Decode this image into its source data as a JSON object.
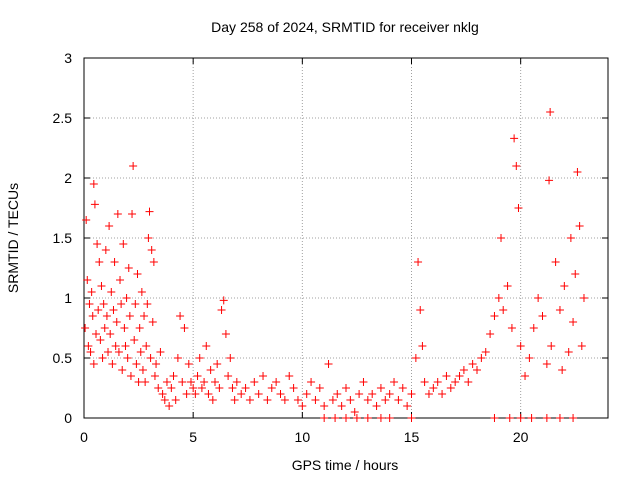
{
  "chart_data": {
    "type": "scatter",
    "title": "Day 258 of 2024, SRMTID for receiver nklg",
    "xlabel": "GPS time / hours",
    "ylabel": "SRMTID / TECUs",
    "xlim": [
      0,
      24
    ],
    "ylim": [
      0,
      3
    ],
    "x_ticks": [
      0,
      5,
      10,
      15,
      20
    ],
    "x_tick_labels": [
      "0",
      "5",
      "10",
      "15",
      "20"
    ],
    "y_ticks": [
      0,
      0.5,
      1,
      1.5,
      2,
      2.5,
      3
    ],
    "y_tick_labels": [
      "0",
      "0.5",
      "1",
      "1.5",
      "2",
      "2.5",
      "3"
    ],
    "grid": true,
    "marker": "+",
    "series": [
      {
        "name": "SRMTID",
        "color": "#ff0000",
        "points": [
          [
            0.05,
            0.75
          ],
          [
            0.1,
            1.65
          ],
          [
            0.15,
            1.15
          ],
          [
            0.2,
            0.6
          ],
          [
            0.25,
            0.95
          ],
          [
            0.3,
            0.55
          ],
          [
            0.35,
            1.05
          ],
          [
            0.4,
            0.85
          ],
          [
            0.45,
            1.95
          ],
          [
            0.45,
            0.45
          ],
          [
            0.5,
            1.78
          ],
          [
            0.55,
            0.7
          ],
          [
            0.6,
            1.45
          ],
          [
            0.65,
            0.9
          ],
          [
            0.7,
            1.3
          ],
          [
            0.75,
            0.65
          ],
          [
            0.8,
            1.1
          ],
          [
            0.85,
            0.5
          ],
          [
            0.9,
            0.95
          ],
          [
            0.95,
            0.75
          ],
          [
            1.0,
            1.4
          ],
          [
            1.05,
            0.85
          ],
          [
            1.1,
            0.55
          ],
          [
            1.15,
            1.6
          ],
          [
            1.2,
            0.7
          ],
          [
            1.25,
            1.05
          ],
          [
            1.3,
            0.45
          ],
          [
            1.35,
            0.9
          ],
          [
            1.4,
            1.3
          ],
          [
            1.45,
            0.6
          ],
          [
            1.5,
            0.8
          ],
          [
            1.55,
            1.7
          ],
          [
            1.6,
            0.55
          ],
          [
            1.65,
            1.15
          ],
          [
            1.7,
            0.95
          ],
          [
            1.75,
            0.4
          ],
          [
            1.8,
            1.45
          ],
          [
            1.85,
            0.75
          ],
          [
            1.9,
            0.6
          ],
          [
            1.95,
            1.0
          ],
          [
            2.0,
            0.5
          ],
          [
            2.05,
            1.25
          ],
          [
            2.1,
            0.85
          ],
          [
            2.15,
            0.35
          ],
          [
            2.2,
            1.7
          ],
          [
            2.25,
            2.1
          ],
          [
            2.3,
            0.65
          ],
          [
            2.35,
            0.95
          ],
          [
            2.4,
            0.45
          ],
          [
            2.45,
            1.2
          ],
          [
            2.5,
            0.3
          ],
          [
            2.55,
            0.75
          ],
          [
            2.6,
            0.55
          ],
          [
            2.65,
            1.05
          ],
          [
            2.7,
            0.4
          ],
          [
            2.75,
            0.85
          ],
          [
            2.8,
            0.3
          ],
          [
            2.85,
            0.6
          ],
          [
            2.9,
            0.95
          ],
          [
            2.95,
            1.5
          ],
          [
            3.0,
            1.72
          ],
          [
            3.05,
            0.5
          ],
          [
            3.1,
            1.4
          ],
          [
            3.15,
            0.8
          ],
          [
            3.2,
            1.3
          ],
          [
            3.25,
            0.35
          ],
          [
            3.3,
            0.45
          ],
          [
            3.4,
            0.25
          ],
          [
            3.5,
            0.55
          ],
          [
            3.6,
            0.2
          ],
          [
            3.7,
            0.15
          ],
          [
            3.8,
            0.3
          ],
          [
            3.9,
            0.1
          ],
          [
            4.0,
            0.25
          ],
          [
            4.1,
            0.35
          ],
          [
            4.2,
            0.15
          ],
          [
            4.3,
            0.5
          ],
          [
            4.4,
            0.85
          ],
          [
            4.5,
            0.3
          ],
          [
            4.6,
            0.75
          ],
          [
            4.7,
            0.2
          ],
          [
            4.8,
            0.45
          ],
          [
            4.9,
            0.3
          ],
          [
            5.0,
            0.25
          ],
          [
            5.1,
            0.2
          ],
          [
            5.2,
            0.35
          ],
          [
            5.3,
            0.5
          ],
          [
            5.4,
            0.25
          ],
          [
            5.5,
            0.3
          ],
          [
            5.6,
            0.6
          ],
          [
            5.7,
            0.2
          ],
          [
            5.8,
            0.4
          ],
          [
            5.9,
            0.15
          ],
          [
            6.0,
            0.3
          ],
          [
            6.1,
            0.45
          ],
          [
            6.2,
            0.25
          ],
          [
            6.3,
            0.9
          ],
          [
            6.4,
            0.98
          ],
          [
            6.5,
            0.7
          ],
          [
            6.6,
            0.35
          ],
          [
            6.7,
            0.5
          ],
          [
            6.8,
            0.25
          ],
          [
            6.9,
            0.15
          ],
          [
            7.0,
            0.3
          ],
          [
            7.2,
            0.2
          ],
          [
            7.4,
            0.25
          ],
          [
            7.6,
            0.15
          ],
          [
            7.8,
            0.3
          ],
          [
            8.0,
            0.2
          ],
          [
            8.2,
            0.35
          ],
          [
            8.4,
            0.15
          ],
          [
            8.6,
            0.25
          ],
          [
            8.8,
            0.3
          ],
          [
            9.0,
            0.2
          ],
          [
            9.2,
            0.15
          ],
          [
            9.4,
            0.35
          ],
          [
            9.6,
            0.25
          ],
          [
            9.8,
            0.15
          ],
          [
            10.0,
            0.1
          ],
          [
            10.2,
            0.2
          ],
          [
            10.4,
            0.3
          ],
          [
            10.6,
            0.15
          ],
          [
            10.8,
            0.25
          ],
          [
            11.0,
            0.1
          ],
          [
            11.2,
            0.45
          ],
          [
            11.4,
            0.15
          ],
          [
            11.6,
            0.2
          ],
          [
            11.8,
            0.1
          ],
          [
            12.0,
            0.25
          ],
          [
            12.2,
            0.15
          ],
          [
            12.4,
            0.05
          ],
          [
            12.6,
            0.2
          ],
          [
            12.8,
            0.3
          ],
          [
            13.0,
            0.15
          ],
          [
            13.2,
            0.2
          ],
          [
            13.4,
            0.1
          ],
          [
            13.6,
            0.25
          ],
          [
            13.8,
            0.15
          ],
          [
            14.0,
            0.2
          ],
          [
            14.2,
            0.3
          ],
          [
            14.4,
            0.15
          ],
          [
            14.6,
            0.25
          ],
          [
            14.8,
            0.1
          ],
          [
            15.0,
            0.2
          ],
          [
            15.2,
            0.5
          ],
          [
            15.3,
            1.3
          ],
          [
            15.4,
            0.9
          ],
          [
            15.5,
            0.6
          ],
          [
            15.6,
            0.3
          ],
          [
            15.8,
            0.2
          ],
          [
            16.0,
            0.25
          ],
          [
            16.2,
            0.3
          ],
          [
            16.4,
            0.2
          ],
          [
            16.6,
            0.35
          ],
          [
            16.8,
            0.25
          ],
          [
            17.0,
            0.3
          ],
          [
            17.2,
            0.35
          ],
          [
            17.4,
            0.4
          ],
          [
            17.6,
            0.3
          ],
          [
            17.8,
            0.45
          ],
          [
            18.0,
            0.4
          ],
          [
            18.2,
            0.5
          ],
          [
            18.4,
            0.55
          ],
          [
            18.6,
            0.7
          ],
          [
            18.8,
            0.85
          ],
          [
            19.0,
            1.0
          ],
          [
            19.1,
            1.5
          ],
          [
            19.2,
            0.9
          ],
          [
            19.4,
            1.1
          ],
          [
            19.6,
            0.75
          ],
          [
            19.7,
            2.33
          ],
          [
            19.8,
            2.1
          ],
          [
            19.9,
            1.75
          ],
          [
            20.0,
            0.6
          ],
          [
            20.2,
            0.35
          ],
          [
            20.4,
            0.5
          ],
          [
            20.6,
            0.75
          ],
          [
            20.8,
            1.0
          ],
          [
            21.0,
            0.85
          ],
          [
            21.2,
            0.45
          ],
          [
            21.3,
            1.98
          ],
          [
            21.35,
            2.55
          ],
          [
            21.4,
            0.6
          ],
          [
            21.6,
            1.3
          ],
          [
            21.8,
            0.9
          ],
          [
            21.9,
            0.4
          ],
          [
            22.0,
            1.1
          ],
          [
            22.2,
            0.55
          ],
          [
            22.3,
            1.5
          ],
          [
            22.4,
            0.8
          ],
          [
            22.5,
            1.2
          ],
          [
            22.6,
            2.05
          ],
          [
            22.7,
            1.6
          ],
          [
            22.8,
            0.6
          ],
          [
            22.9,
            1.0
          ],
          [
            11.0,
            0.0
          ],
          [
            11.5,
            0.0
          ],
          [
            12.0,
            0.0
          ],
          [
            12.5,
            0.0
          ],
          [
            13.0,
            0.0
          ],
          [
            13.6,
            0.0
          ],
          [
            14.0,
            0.0
          ],
          [
            15.0,
            0.0
          ],
          [
            18.8,
            0.0
          ],
          [
            19.5,
            0.0
          ],
          [
            20.0,
            0.0
          ],
          [
            20.5,
            0.0
          ],
          [
            21.2,
            0.0
          ],
          [
            21.8,
            0.0
          ],
          [
            22.4,
            0.0
          ]
        ]
      }
    ]
  }
}
